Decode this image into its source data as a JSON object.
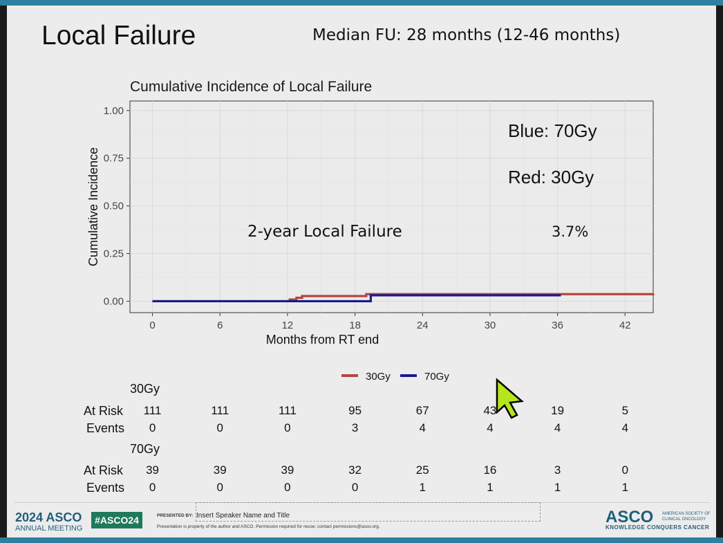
{
  "slide": {
    "title": "Local Failure",
    "median_fu": "Median FU:  28 months (12-46 months)"
  },
  "chart_data": {
    "type": "line",
    "title": "Cumulative Incidence of Local Failure",
    "xlabel": "Months from RT end",
    "ylabel": "Cumulative Incidence",
    "xlim": [
      -2,
      44.5
    ],
    "ylim": [
      -0.06,
      1.05
    ],
    "xticks": [
      0,
      6,
      12,
      18,
      24,
      30,
      36,
      42
    ],
    "yticks": [
      0.0,
      0.25,
      0.5,
      0.75,
      1.0
    ],
    "ytick_labels": [
      "0.00",
      "0.25",
      "0.50",
      "0.75",
      "1.00"
    ],
    "grid": true,
    "legend_position": "bottom",
    "series": [
      {
        "name": "30Gy",
        "color": "#b5453a",
        "step_x": [
          0,
          12.2,
          12.8,
          13.3,
          19.0,
          44.5
        ],
        "step_y": [
          0.0,
          0.009,
          0.018,
          0.027,
          0.037,
          0.04
        ]
      },
      {
        "name": "70Gy",
        "color": "#1a1a8c",
        "step_x": [
          0,
          19.4,
          36.3
        ],
        "step_y": [
          0.0,
          0.031,
          0.031
        ]
      }
    ],
    "annotations": {
      "blue_label": "Blue:  70Gy",
      "red_label": "Red:  30Gy",
      "two_year_label": "2-year Local Failure",
      "two_year_value": "3.7%"
    }
  },
  "risk_table": {
    "group_30": "30Gy",
    "group_70": "70Gy",
    "at_risk_label": "At Risk",
    "events_label": "Events",
    "at_risk_30": [
      "111",
      "111",
      "111",
      "95",
      "67",
      "43",
      "19",
      "5"
    ],
    "events_30": [
      "0",
      "0",
      "0",
      "3",
      "4",
      "4",
      "4",
      "4"
    ],
    "at_risk_70": [
      "39",
      "39",
      "39",
      "32",
      "25",
      "16",
      "3",
      "0"
    ],
    "events_70": [
      "0",
      "0",
      "0",
      "0",
      "1",
      "1",
      "1",
      "1"
    ]
  },
  "footer": {
    "year": "2024",
    "asco": "ASCO",
    "annual_meeting": "ANNUAL MEETING",
    "hashtag": "#ASCO24",
    "presented_by": "PRESENTED BY:",
    "speaker": "Insert Speaker Name and Title",
    "disclaimer": "Presentation is property of the author and ASCO. Permission required for reuse; contact permissions@asco.org.",
    "society": "AMERICAN SOCIETY OF CLINICAL ONCOLOGY",
    "tagline": "KNOWLEDGE CONQUERS CANCER"
  },
  "colors": {
    "accent": "#2e7fa0",
    "cursor": "#b5e61d"
  }
}
